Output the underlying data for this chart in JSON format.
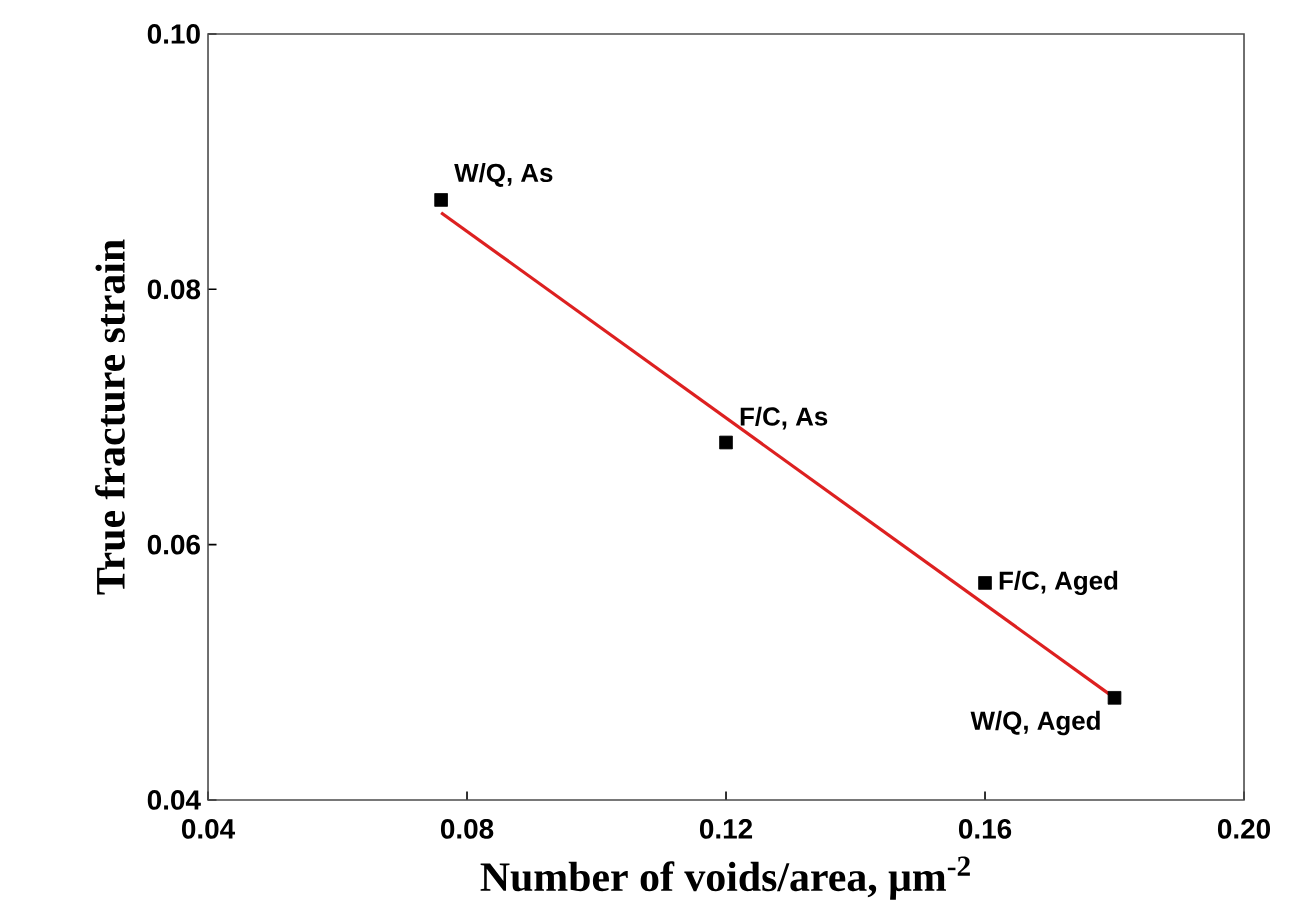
{
  "chart_data": {
    "type": "scatter",
    "xlabel": "Number of voids/area, μm$^{-2}$",
    "ylabel": "True fracture strain",
    "xlim": [
      0.04,
      0.2
    ],
    "ylim": [
      0.04,
      0.1
    ],
    "xticks": [
      0.04,
      0.08,
      0.12,
      0.16,
      {
        "value": 0.2,
        "label": "0.20"
      }
    ],
    "yticks": [
      0.04,
      0.06,
      0.08,
      {
        "value": 0.1,
        "label": "0.10"
      }
    ],
    "grid": false,
    "x": [
      0.076,
      0.12,
      0.16,
      0.18
    ],
    "series": [
      {
        "color": "#000000",
        "marker": "square",
        "values": [
          0.087,
          0.068,
          0.057,
          0.048
        ]
      },
      {
        "type": "line",
        "marker": "none",
        "color": "#dd2020",
        "x": [
          0.076,
          0.18
        ],
        "values": [
          0.086,
          0.048
        ]
      }
    ],
    "annotations": [
      {
        "text": "W/Q, As",
        "x": 0.076,
        "y": 0.087
      },
      {
        "text": "F/C, As",
        "x": 0.12,
        "y": 0.068
      },
      {
        "text": "F/C, Aged",
        "x": 0.16,
        "y": 0.057
      },
      {
        "text": "W/Q, Aged",
        "x": 0.18,
        "y": 0.048
      }
    ]
  }
}
